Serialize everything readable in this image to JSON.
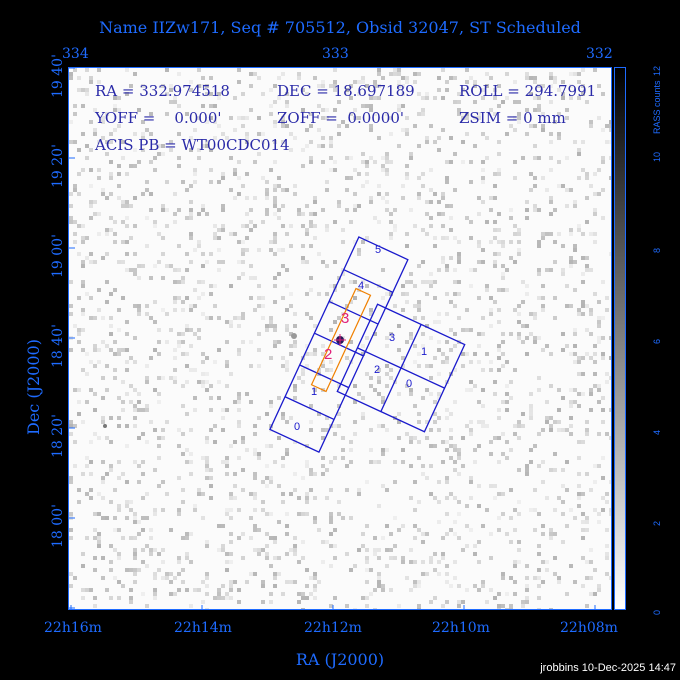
{
  "title": "Name IIZw171, Seq # 705512, Obsid 32047, ST Scheduled",
  "top_axis_ticks": [
    "334",
    "333",
    "332"
  ],
  "ra_ticks": [
    "22h16m",
    "22h14m",
    "22h12m",
    "22h10m",
    "22h08m"
  ],
  "dec_ticks": [
    "19 40'",
    "19 20'",
    "19 00'",
    "18 40'",
    "18 20'",
    "18 00'"
  ],
  "x_axis_title": "RA (J2000)",
  "y_axis_title": "Dec (J2000)",
  "info": {
    "ra": "RA = 332.974518",
    "dec": "DEC = 18.697189",
    "roll": "ROLL = 294.7991",
    "yoff": "YOFF =    0.000'",
    "zoff": "ZOFF =  0.0000'",
    "zsim": "ZSIM = 0 mm",
    "acis_pb": "ACIS PB = WT00CDC014"
  },
  "chips_s": [
    "0",
    "1",
    "2",
    "3",
    "4",
    "5"
  ],
  "chips_i": [
    "0",
    "1",
    "2",
    "3"
  ],
  "highlight_labels": [
    "2",
    "3"
  ],
  "colorbar": {
    "label": "RASS counts",
    "ticks": [
      "0",
      "2",
      "4",
      "6",
      "8",
      "10",
      "12"
    ]
  },
  "footer": "jrobbins 10-Dec-2025 14:47",
  "colors": {
    "axis": "#1e6bff",
    "info_text": "#2a2aa8",
    "chip_outline": "#1a1acc",
    "slit": "#f08000",
    "highlight": "#e0207a"
  }
}
